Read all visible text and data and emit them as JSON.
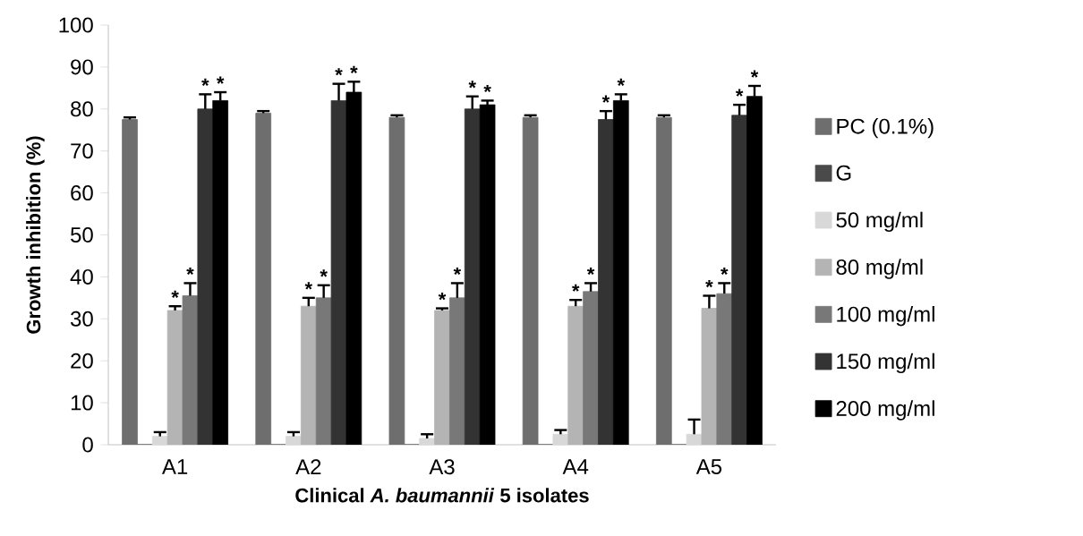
{
  "chart_data": {
    "type": "bar",
    "ylabel": "Growth inhibition (%)",
    "xlabel": "Clinical *A. baumannii* 5 isolates",
    "categories": [
      "A1",
      "A2",
      "A3",
      "A4",
      "A5"
    ],
    "ylim": [
      0,
      100
    ],
    "yticks": [
      0,
      10,
      20,
      30,
      40,
      50,
      60,
      70,
      80,
      90,
      100
    ],
    "grid": false,
    "legend": "right",
    "series": [
      {
        "name": "PC (0.1%)",
        "color": "#6e6e6e",
        "values": [
          77.5,
          79,
          78,
          78,
          78
        ],
        "errors": [
          0.5,
          0.5,
          0.5,
          0.5,
          0.5
        ]
      },
      {
        "name": "G",
        "color": "#4a4a4a",
        "values": [
          0,
          0,
          0,
          0,
          0
        ]
      },
      {
        "name": "50 mg/ml",
        "color": "#d8d8d8",
        "values": [
          2,
          2,
          1.5,
          2.5,
          2.5
        ],
        "errors": [
          1,
          1,
          1,
          1,
          3.5
        ]
      },
      {
        "name": "80 mg/ml",
        "color": "#b4b4b4",
        "values": [
          32,
          33,
          32,
          33,
          32.5
        ],
        "errors": [
          1,
          2,
          0.5,
          1.5,
          3
        ],
        "value_labels": [
          "*",
          "*",
          "*",
          "*",
          "*"
        ]
      },
      {
        "name": "100 mg/ml",
        "color": "#787878",
        "values": [
          35.5,
          35,
          35,
          36.5,
          36
        ],
        "errors": [
          3,
          3,
          3.5,
          2,
          2.5
        ],
        "value_labels": [
          "*",
          "*",
          "*",
          "*",
          "*"
        ]
      },
      {
        "name": "150 mg/ml",
        "color": "#333333",
        "values": [
          80,
          82,
          80,
          77.5,
          78.5
        ],
        "errors": [
          3.5,
          4,
          3,
          2,
          2.5
        ],
        "value_labels": [
          "*",
          "*",
          "*",
          "*",
          "*"
        ]
      },
      {
        "name": "200 mg/ml",
        "color": "#000000",
        "values": [
          82,
          84,
          81,
          82,
          83
        ],
        "errors": [
          2,
          2.5,
          1,
          1.5,
          2.5
        ],
        "value_labels": [
          "*",
          "*",
          "*",
          "*",
          "*"
        ]
      }
    ]
  }
}
